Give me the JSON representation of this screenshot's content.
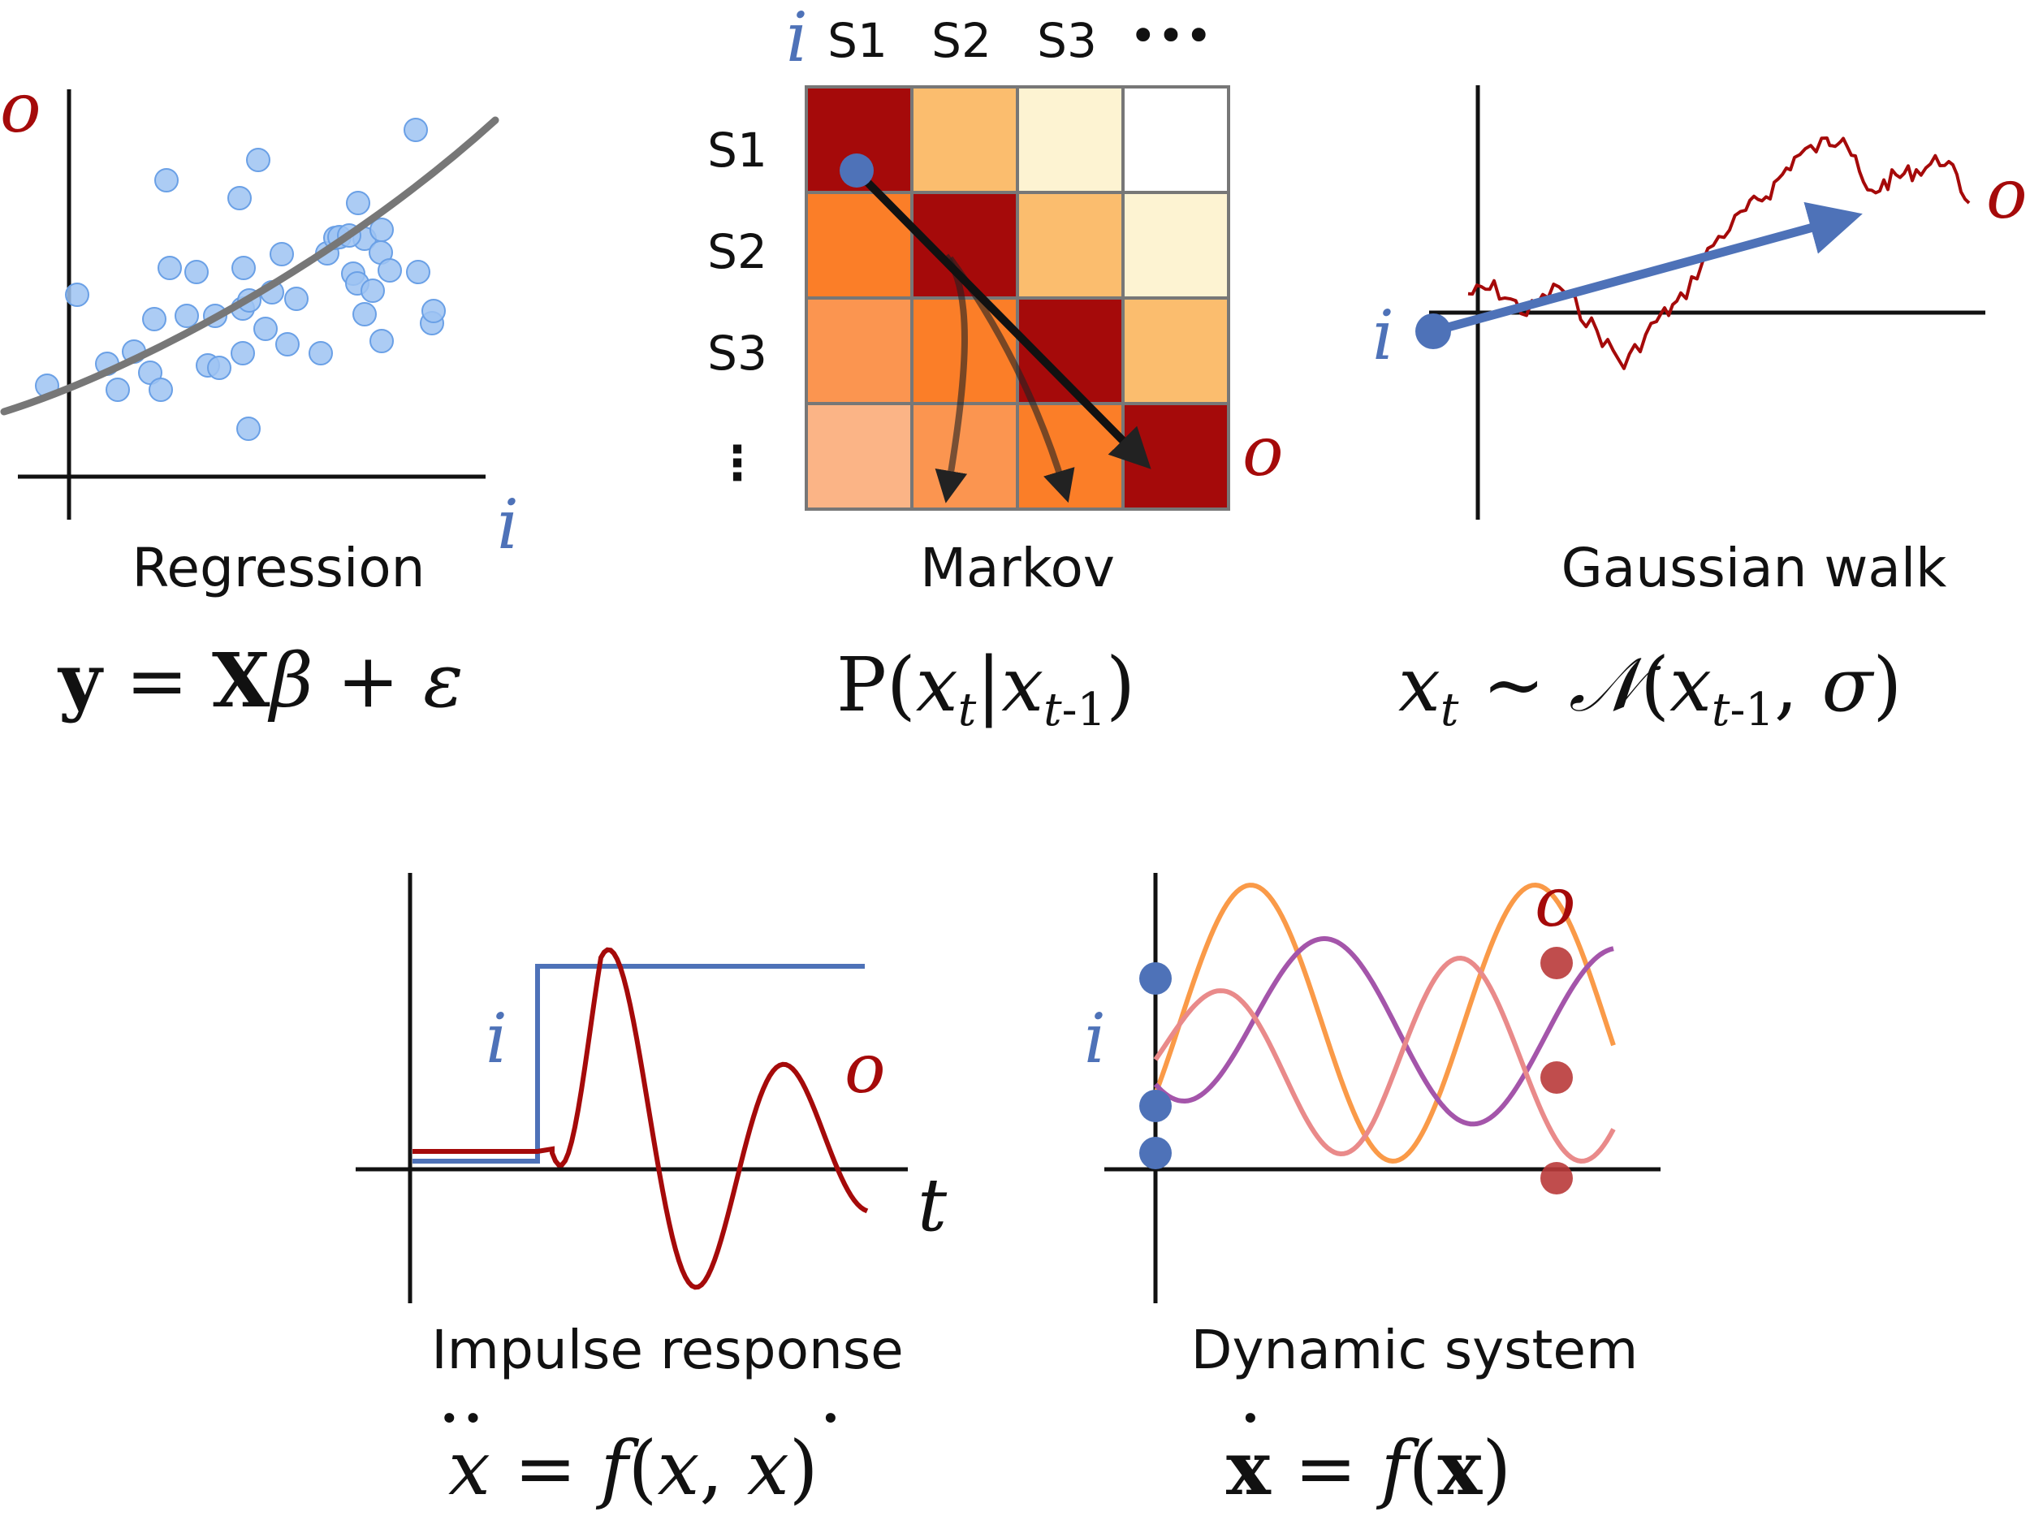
{
  "colors": {
    "input_blue": "#4e72b8",
    "output_red": "#a50a0a",
    "point_fill": "#9dc3f2",
    "point_stroke": "#6aa0e6",
    "fit_gray": "#777777",
    "orange": "#fa9a48",
    "purple": "#a455aa",
    "pink": "#e98a8a"
  },
  "labels": {
    "input": "i",
    "output": "o",
    "time": "t"
  },
  "regression": {
    "caption": "Regression",
    "formula": "y = Xβ + ε"
  },
  "markov": {
    "caption": "Markov",
    "formula": "P(x_t | x_t-1)",
    "states": [
      "S1",
      "S2",
      "S3"
    ],
    "ellipsis": "•••",
    "vertical_ellipsis": "⋮",
    "heatmap_colors": [
      [
        "#a50a0a",
        "#fbbd6e",
        "#fdf3d2",
        "#ffffff"
      ],
      [
        "#fb7e28",
        "#a50a0a",
        "#fbbd6e",
        "#fdf3d2"
      ],
      [
        "#fb9550",
        "#fb7e28",
        "#a50a0a",
        "#fbbd6e"
      ],
      [
        "#fbb486",
        "#fb9550",
        "#fb7e28",
        "#a50a0a"
      ]
    ]
  },
  "gaussian_walk": {
    "caption": "Gaussian walk",
    "formula": "x_t ~ N(x_t-1, σ)"
  },
  "impulse_response": {
    "caption": "Impulse response",
    "formula": "ẍ = f(x, ẋ)"
  },
  "dynamic_system": {
    "caption": "Dynamic system",
    "formula": "ẋ = f(x)"
  }
}
